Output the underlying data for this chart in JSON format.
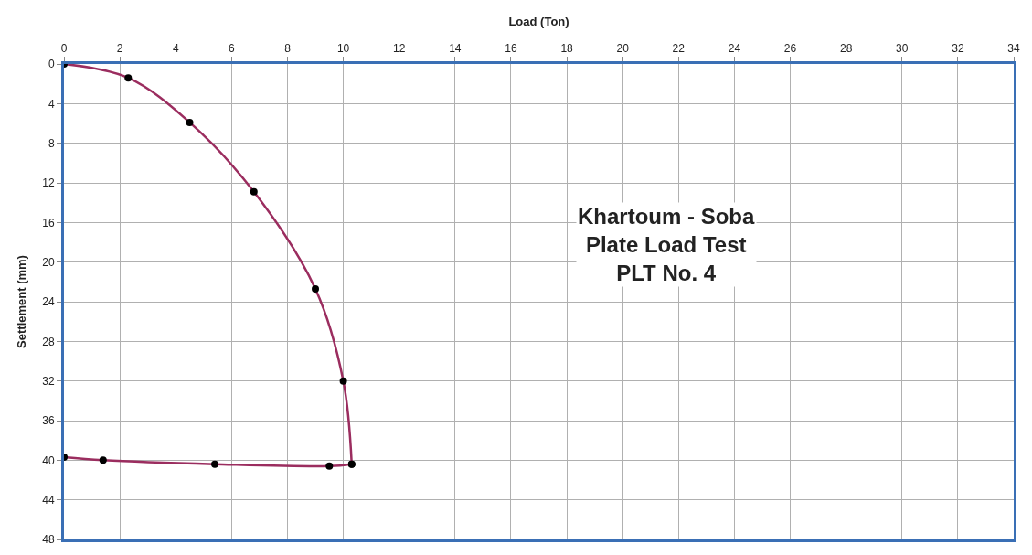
{
  "chart_data": {
    "type": "line",
    "xlabel": "Load (Ton)",
    "ylabel": "Settlement (mm)",
    "annotations": [
      "Khartoum - Soba\nPlate Load Test\nPLT No. 4"
    ],
    "xlim": [
      0,
      34
    ],
    "xticks": [
      0,
      2,
      4,
      6,
      8,
      10,
      12,
      14,
      16,
      18,
      20,
      22,
      24,
      26,
      28,
      30,
      32,
      34
    ],
    "ylim": [
      48,
      0
    ],
    "yticks": [
      0,
      4,
      8,
      12,
      16,
      20,
      24,
      28,
      32,
      36,
      40,
      44,
      48
    ],
    "grid": true,
    "marker": "circle",
    "line_style": "solid",
    "series": [
      {
        "color": "#9b2d5f",
        "colors": [
          "#000000",
          "#000000",
          "#000000",
          "#000000",
          "#000000",
          "#000000",
          "#000000"
        ],
        "x": [
          0,
          2.3,
          4.5,
          6.8,
          9.0,
          10.0,
          10.3
        ],
        "values": [
          0,
          1.4,
          5.9,
          12.9,
          22.7,
          32.0,
          40.4
        ]
      },
      {
        "color": "#9b2d5f",
        "colors": [
          "#000000",
          "#000000",
          "#000000",
          "#000000",
          "#000000"
        ],
        "x": [
          0,
          1.4,
          5.4,
          9.5,
          10.3
        ],
        "values": [
          39.7,
          40.0,
          40.4,
          40.6,
          40.4
        ]
      }
    ]
  }
}
